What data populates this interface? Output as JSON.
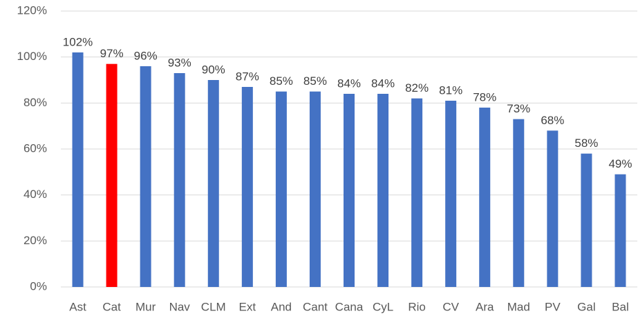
{
  "chart_data": {
    "type": "bar",
    "categories": [
      "Ast",
      "Cat",
      "Mur",
      "Nav",
      "CLM",
      "Ext",
      "And",
      "Cant",
      "Cana",
      "CyL",
      "Rio",
      "CV",
      "Ara",
      "Mad",
      "PV",
      "Gal",
      "Bal"
    ],
    "values": [
      102,
      97,
      96,
      93,
      90,
      87,
      85,
      85,
      84,
      84,
      82,
      81,
      78,
      73,
      68,
      58,
      49
    ],
    "value_labels": [
      "102%",
      "97%",
      "96%",
      "93%",
      "90%",
      "87%",
      "85%",
      "85%",
      "84%",
      "84%",
      "82%",
      "81%",
      "78%",
      "73%",
      "68%",
      "58%",
      "49%"
    ],
    "colors": [
      "#4472c4",
      "#ff0000",
      "#4472c4",
      "#4472c4",
      "#4472c4",
      "#4472c4",
      "#4472c4",
      "#4472c4",
      "#4472c4",
      "#4472c4",
      "#4472c4",
      "#4472c4",
      "#4472c4",
      "#4472c4",
      "#4472c4",
      "#4472c4",
      "#4472c4"
    ],
    "ylim": [
      0,
      120
    ],
    "yticks": [
      {
        "value": 0,
        "label": "0%"
      },
      {
        "value": 20,
        "label": "20%"
      },
      {
        "value": 40,
        "label": "40%"
      },
      {
        "value": 60,
        "label": "60%"
      },
      {
        "value": 80,
        "label": "80%"
      },
      {
        "value": 100,
        "label": "100%"
      },
      {
        "value": 120,
        "label": "120%"
      }
    ],
    "grid": true
  }
}
